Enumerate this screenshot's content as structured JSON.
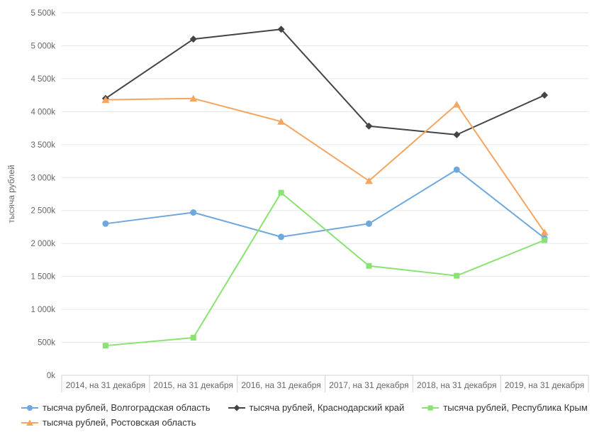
{
  "chart_data": {
    "type": "line",
    "title": "",
    "xlabel": "",
    "ylabel": "тысяча рублей",
    "unit": "k",
    "categories": [
      "2014, на 31 декабря",
      "2015, на 31 декабря",
      "2016, на 31 декабря",
      "2017, на 31 декабря",
      "2018, на 31 декабря",
      "2019, на 31 декабря"
    ],
    "ylim": [
      0,
      5500
    ],
    "y_tick_interval": 500,
    "y_tick_labels": [
      "0k",
      "500k",
      "1 000k",
      "1 500k",
      "2 000k",
      "2 500k",
      "3 000k",
      "3 500k",
      "4 000k",
      "4 500k",
      "5 000k",
      "5 500k"
    ],
    "grid": true,
    "legend_position": "bottom",
    "series": [
      {
        "name": "тысяча рублей, Волгоградская область",
        "color": "#6fa8dc",
        "marker": "circle",
        "values": [
          2300,
          2470,
          2100,
          2300,
          3120,
          2080
        ]
      },
      {
        "name": "тысяча рублей, Краснодарский край",
        "color": "#434348",
        "marker": "diamond",
        "values": [
          4200,
          5100,
          5250,
          3780,
          3650,
          4250
        ]
      },
      {
        "name": "тысяча рублей, Республика Крым",
        "color": "#8ae271",
        "marker": "square",
        "values": [
          450,
          570,
          2770,
          1660,
          1510,
          2050
        ]
      },
      {
        "name": "тысяча рублей, Ростовская область",
        "color": "#f4a55f",
        "marker": "triangle",
        "values": [
          4180,
          4200,
          3850,
          2950,
          4110,
          2170
        ]
      }
    ],
    "colors": {
      "grid": "#e6e6e6",
      "axis_line": "#d0d0d5",
      "tick_mark": "#d0d0d5",
      "tick_label": "#666666",
      "axis_title": "#666666",
      "legend_text": "#333333",
      "background": "#ffffff"
    }
  }
}
